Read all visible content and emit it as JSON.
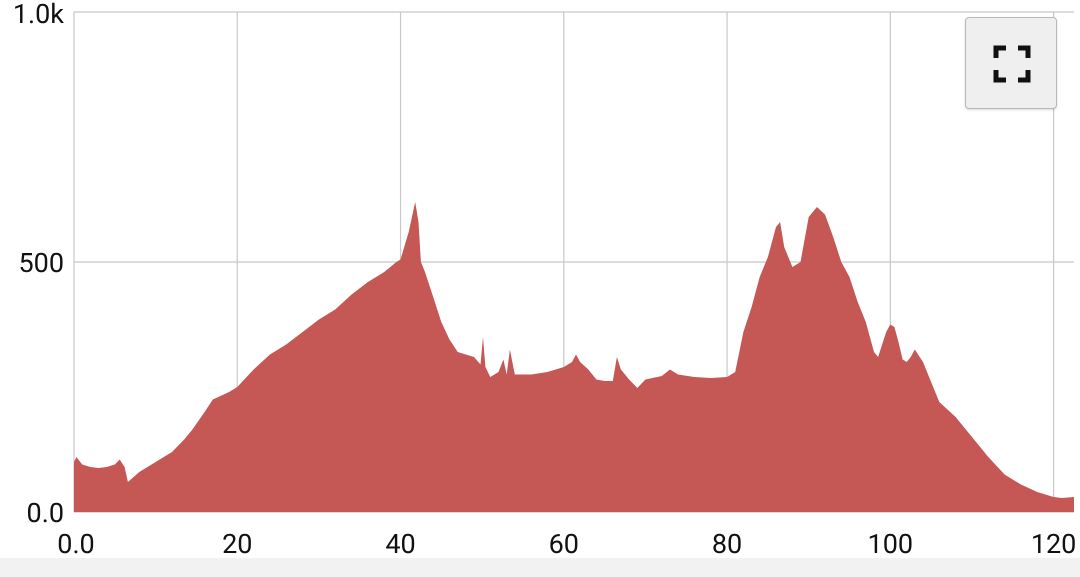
{
  "chart_data": {
    "type": "area",
    "title": "",
    "xlabel": "",
    "ylabel": "",
    "xlim": [
      0,
      122.5
    ],
    "ylim": [
      0,
      1000
    ],
    "x_ticks": [
      0,
      20,
      40,
      60,
      80,
      100,
      120
    ],
    "x_tick_labels": [
      "0.0",
      "20",
      "40",
      "60",
      "80",
      "100",
      "120"
    ],
    "y_ticks": [
      0,
      500,
      1000
    ],
    "y_tick_labels": [
      "0.0",
      "500",
      "1.0k"
    ],
    "grid": true,
    "fill_color": "#c55755",
    "series": [
      {
        "x": [
          0,
          0.3,
          1,
          2,
          3,
          4,
          5,
          5.6,
          6.2,
          6.6,
          8,
          10,
          12,
          13.5,
          14.5,
          16,
          17,
          19,
          20,
          22,
          24,
          26,
          28,
          30,
          32,
          34,
          36,
          38,
          39.5,
          40,
          41,
          41.8,
          42.2,
          42.5,
          43,
          44,
          45,
          46,
          47,
          48,
          49,
          49.8,
          50.1,
          50.4,
          51,
          52,
          52.6,
          53,
          53.4,
          54,
          55,
          56,
          58,
          60,
          61,
          61.5,
          62,
          63,
          64,
          65,
          66,
          66.5,
          67,
          68,
          69,
          70,
          72,
          73,
          74,
          76,
          78,
          80,
          81,
          82,
          83,
          84,
          85,
          86,
          86.5,
          87,
          88,
          89,
          90,
          91,
          92,
          93,
          94,
          95,
          96,
          97,
          98,
          98.5,
          99.5,
          100,
          100.5,
          101,
          101.5,
          102,
          102.5,
          103,
          104,
          105,
          106,
          108,
          110,
          112,
          114,
          116,
          118,
          120,
          121,
          122.5
        ],
        "y": [
          100,
          110,
          95,
          90,
          88,
          90,
          95,
          105,
          90,
          60,
          80,
          100,
          120,
          145,
          165,
          200,
          225,
          240,
          250,
          285,
          315,
          335,
          360,
          385,
          405,
          435,
          460,
          480,
          500,
          505,
          560,
          620,
          580,
          500,
          480,
          430,
          380,
          345,
          320,
          315,
          310,
          295,
          350,
          290,
          270,
          280,
          305,
          275,
          325,
          275,
          275,
          275,
          280,
          290,
          300,
          315,
          300,
          285,
          265,
          262,
          262,
          310,
          285,
          265,
          248,
          265,
          272,
          285,
          275,
          270,
          268,
          270,
          280,
          360,
          410,
          470,
          510,
          570,
          580,
          530,
          490,
          500,
          590,
          610,
          595,
          550,
          500,
          470,
          420,
          380,
          320,
          310,
          360,
          375,
          370,
          340,
          305,
          300,
          310,
          325,
          300,
          260,
          220,
          190,
          150,
          110,
          75,
          55,
          40,
          30,
          28,
          30
        ]
      }
    ]
  },
  "controls": {
    "fullscreen_icon": "fullscreen-icon"
  },
  "colors": {
    "grid": "#c8c8c8",
    "button_bg": "#efefef"
  }
}
